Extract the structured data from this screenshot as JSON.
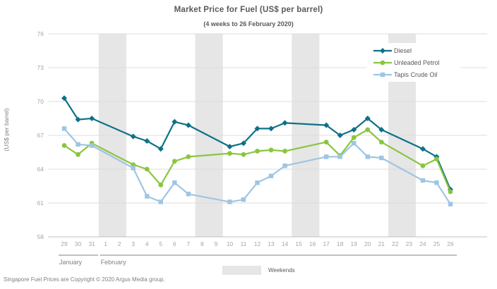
{
  "header": {
    "title": "Market Price for Fuel (US$ per barrel)",
    "subtitle": "(4 weeks to 26 February 2020)"
  },
  "footer": {
    "copyright": "Singapore  Fuel Prices are Copyright © 2020 Argus Media group."
  },
  "colors": {
    "diesel": "#0e7187",
    "unleaded_petrol": "#8bc53f",
    "tapis_crude_oil": "#9fc5e3",
    "weekend_band": "#e6e6e6",
    "grid_line": "#dcdcdc",
    "axis_line": "#c0c0c0",
    "tick_text": "#a6a6a6",
    "month_text": "#808080",
    "title_text": "#595959"
  },
  "chart_data": {
    "type": "line",
    "title": "Market Price for Fuel (US$ per barrel)",
    "subtitle": "(4 weeks to 26 February 2020)",
    "xlabel": "",
    "ylabel": "(US$ per barrel)",
    "ylim": [
      58,
      76
    ],
    "yticks": [
      58,
      61,
      64,
      67,
      70,
      73,
      76
    ],
    "grid": true,
    "legend_position": "top-right",
    "day_labels": [
      "29",
      "30",
      "31",
      "1",
      "2",
      "3",
      "4",
      "5",
      "6",
      "7",
      "8",
      "9",
      "10",
      "11",
      "12",
      "13",
      "14",
      "15",
      "16",
      "17",
      "18",
      "19",
      "20",
      "21",
      "22",
      "23",
      "24",
      "25",
      "26"
    ],
    "month_groups": [
      {
        "label": "January",
        "start": 0,
        "end": 2
      },
      {
        "label": "February",
        "start": 3,
        "end": 28
      }
    ],
    "weekend_bands": [
      [
        3,
        4
      ],
      [
        10,
        11
      ],
      [
        17,
        18
      ],
      [
        24,
        25
      ]
    ],
    "weekend_legend_label": "Weekends",
    "series": [
      {
        "name": "Diesel",
        "color": "#0e7187",
        "marker": "diamond",
        "x_index": [
          0,
          1,
          2,
          5,
          6,
          7,
          8,
          9,
          12,
          13,
          14,
          15,
          16,
          19,
          20,
          21,
          22,
          23,
          26,
          27,
          28
        ],
        "values": [
          70.3,
          68.4,
          68.5,
          66.9,
          66.5,
          65.8,
          68.2,
          67.9,
          66.0,
          66.3,
          67.6,
          67.6,
          68.1,
          67.9,
          67.0,
          67.5,
          68.5,
          67.5,
          65.8,
          65.1,
          62.2
        ]
      },
      {
        "name": "Unleaded Petrol",
        "color": "#8bc53f",
        "marker": "circle",
        "x_index": [
          0,
          1,
          2,
          5,
          6,
          7,
          8,
          9,
          12,
          13,
          14,
          15,
          16,
          19,
          20,
          21,
          22,
          23,
          26,
          27,
          28
        ],
        "values": [
          66.1,
          65.3,
          66.3,
          64.4,
          64.0,
          62.6,
          64.7,
          65.1,
          65.4,
          65.3,
          65.6,
          65.7,
          65.6,
          66.4,
          65.2,
          66.8,
          67.5,
          66.4,
          64.3,
          64.9,
          62.0
        ]
      },
      {
        "name": "Tapis Crude Oil",
        "color": "#9fc5e3",
        "marker": "square",
        "x_index": [
          0,
          1,
          2,
          5,
          6,
          7,
          8,
          9,
          12,
          13,
          14,
          15,
          16,
          19,
          20,
          21,
          22,
          23,
          26,
          27,
          28
        ],
        "values": [
          67.6,
          66.2,
          66.1,
          64.1,
          61.6,
          61.1,
          62.8,
          61.8,
          61.1,
          61.3,
          62.8,
          63.4,
          64.3,
          65.1,
          65.1,
          66.3,
          65.1,
          65.0,
          63.0,
          62.8,
          60.9
        ]
      }
    ]
  }
}
